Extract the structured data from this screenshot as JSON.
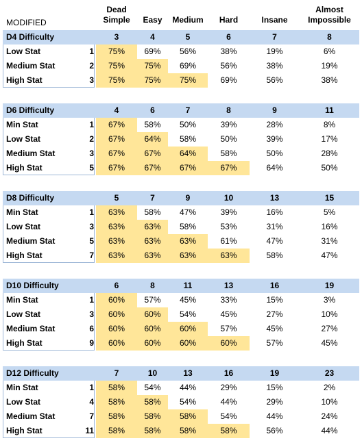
{
  "corner_label": "MODIFIED",
  "columns": [
    {
      "line1": "Dead",
      "line2": "Simple"
    },
    {
      "line1": "",
      "line2": "Easy"
    },
    {
      "line1": "",
      "line2": "Medium"
    },
    {
      "line1": "",
      "line2": "Hard"
    },
    {
      "line1": "",
      "line2": "Insane"
    },
    {
      "line1": "Almost",
      "line2": "Impossible"
    }
  ],
  "highlight_color": "#ffe699",
  "header_color": "#c5d9f1",
  "tables": [
    {
      "title": "D4 Difficulty",
      "targets": [
        "3",
        "4",
        "5",
        "6",
        "7",
        "8"
      ],
      "rows": [
        {
          "label": "Low Stat",
          "stat": "1",
          "values": [
            "75%",
            "69%",
            "56%",
            "38%",
            "19%",
            "6%"
          ]
        },
        {
          "label": "Medium Stat",
          "stat": "2",
          "values": [
            "75%",
            "75%",
            "69%",
            "56%",
            "38%",
            "19%"
          ]
        },
        {
          "label": "High Stat",
          "stat": "3",
          "values": [
            "75%",
            "75%",
            "75%",
            "69%",
            "56%",
            "38%"
          ]
        }
      ]
    },
    {
      "title": "D6 Difficulty",
      "targets": [
        "4",
        "6",
        "7",
        "8",
        "9",
        "11"
      ],
      "rows": [
        {
          "label": "Min Stat",
          "stat": "1",
          "values": [
            "67%",
            "58%",
            "50%",
            "39%",
            "28%",
            "8%"
          ]
        },
        {
          "label": "Low Stat",
          "stat": "2",
          "values": [
            "67%",
            "64%",
            "58%",
            "50%",
            "39%",
            "17%"
          ]
        },
        {
          "label": "Medium Stat",
          "stat": "3",
          "values": [
            "67%",
            "67%",
            "64%",
            "58%",
            "50%",
            "28%"
          ]
        },
        {
          "label": "High Stat",
          "stat": "5",
          "values": [
            "67%",
            "67%",
            "67%",
            "67%",
            "64%",
            "50%"
          ]
        }
      ]
    },
    {
      "title": "D8 Difficulty",
      "targets": [
        "5",
        "7",
        "9",
        "10",
        "13",
        "15"
      ],
      "rows": [
        {
          "label": "Min Stat",
          "stat": "1",
          "values": [
            "63%",
            "58%",
            "47%",
            "39%",
            "16%",
            "5%"
          ]
        },
        {
          "label": "Low Stat",
          "stat": "3",
          "values": [
            "63%",
            "63%",
            "58%",
            "53%",
            "31%",
            "16%"
          ]
        },
        {
          "label": "Medium Stat",
          "stat": "5",
          "values": [
            "63%",
            "63%",
            "63%",
            "61%",
            "47%",
            "31%"
          ]
        },
        {
          "label": "High Stat",
          "stat": "7",
          "values": [
            "63%",
            "63%",
            "63%",
            "63%",
            "58%",
            "47%"
          ]
        }
      ]
    },
    {
      "title": "D10 Difficulty",
      "targets": [
        "6",
        "8",
        "11",
        "13",
        "16",
        "19"
      ],
      "rows": [
        {
          "label": "Min Stat",
          "stat": "1",
          "values": [
            "60%",
            "57%",
            "45%",
            "33%",
            "15%",
            "3%"
          ]
        },
        {
          "label": "Low Stat",
          "stat": "3",
          "values": [
            "60%",
            "60%",
            "54%",
            "45%",
            "27%",
            "10%"
          ]
        },
        {
          "label": "Medium Stat",
          "stat": "6",
          "values": [
            "60%",
            "60%",
            "60%",
            "57%",
            "45%",
            "27%"
          ]
        },
        {
          "label": "High Stat",
          "stat": "9",
          "values": [
            "60%",
            "60%",
            "60%",
            "60%",
            "57%",
            "45%"
          ]
        }
      ]
    },
    {
      "title": "D12 Difficulty",
      "targets": [
        "7",
        "10",
        "13",
        "16",
        "19",
        "23"
      ],
      "rows": [
        {
          "label": "Min Stat",
          "stat": "1",
          "values": [
            "58%",
            "54%",
            "44%",
            "29%",
            "15%",
            "2%"
          ]
        },
        {
          "label": "Low Stat",
          "stat": "4",
          "values": [
            "58%",
            "58%",
            "54%",
            "44%",
            "29%",
            "10%"
          ]
        },
        {
          "label": "Medium Stat",
          "stat": "7",
          "values": [
            "58%",
            "58%",
            "58%",
            "54%",
            "44%",
            "24%"
          ]
        },
        {
          "label": "High Stat",
          "stat": "11",
          "values": [
            "58%",
            "58%",
            "58%",
            "58%",
            "56%",
            "44%"
          ]
        }
      ]
    }
  ]
}
